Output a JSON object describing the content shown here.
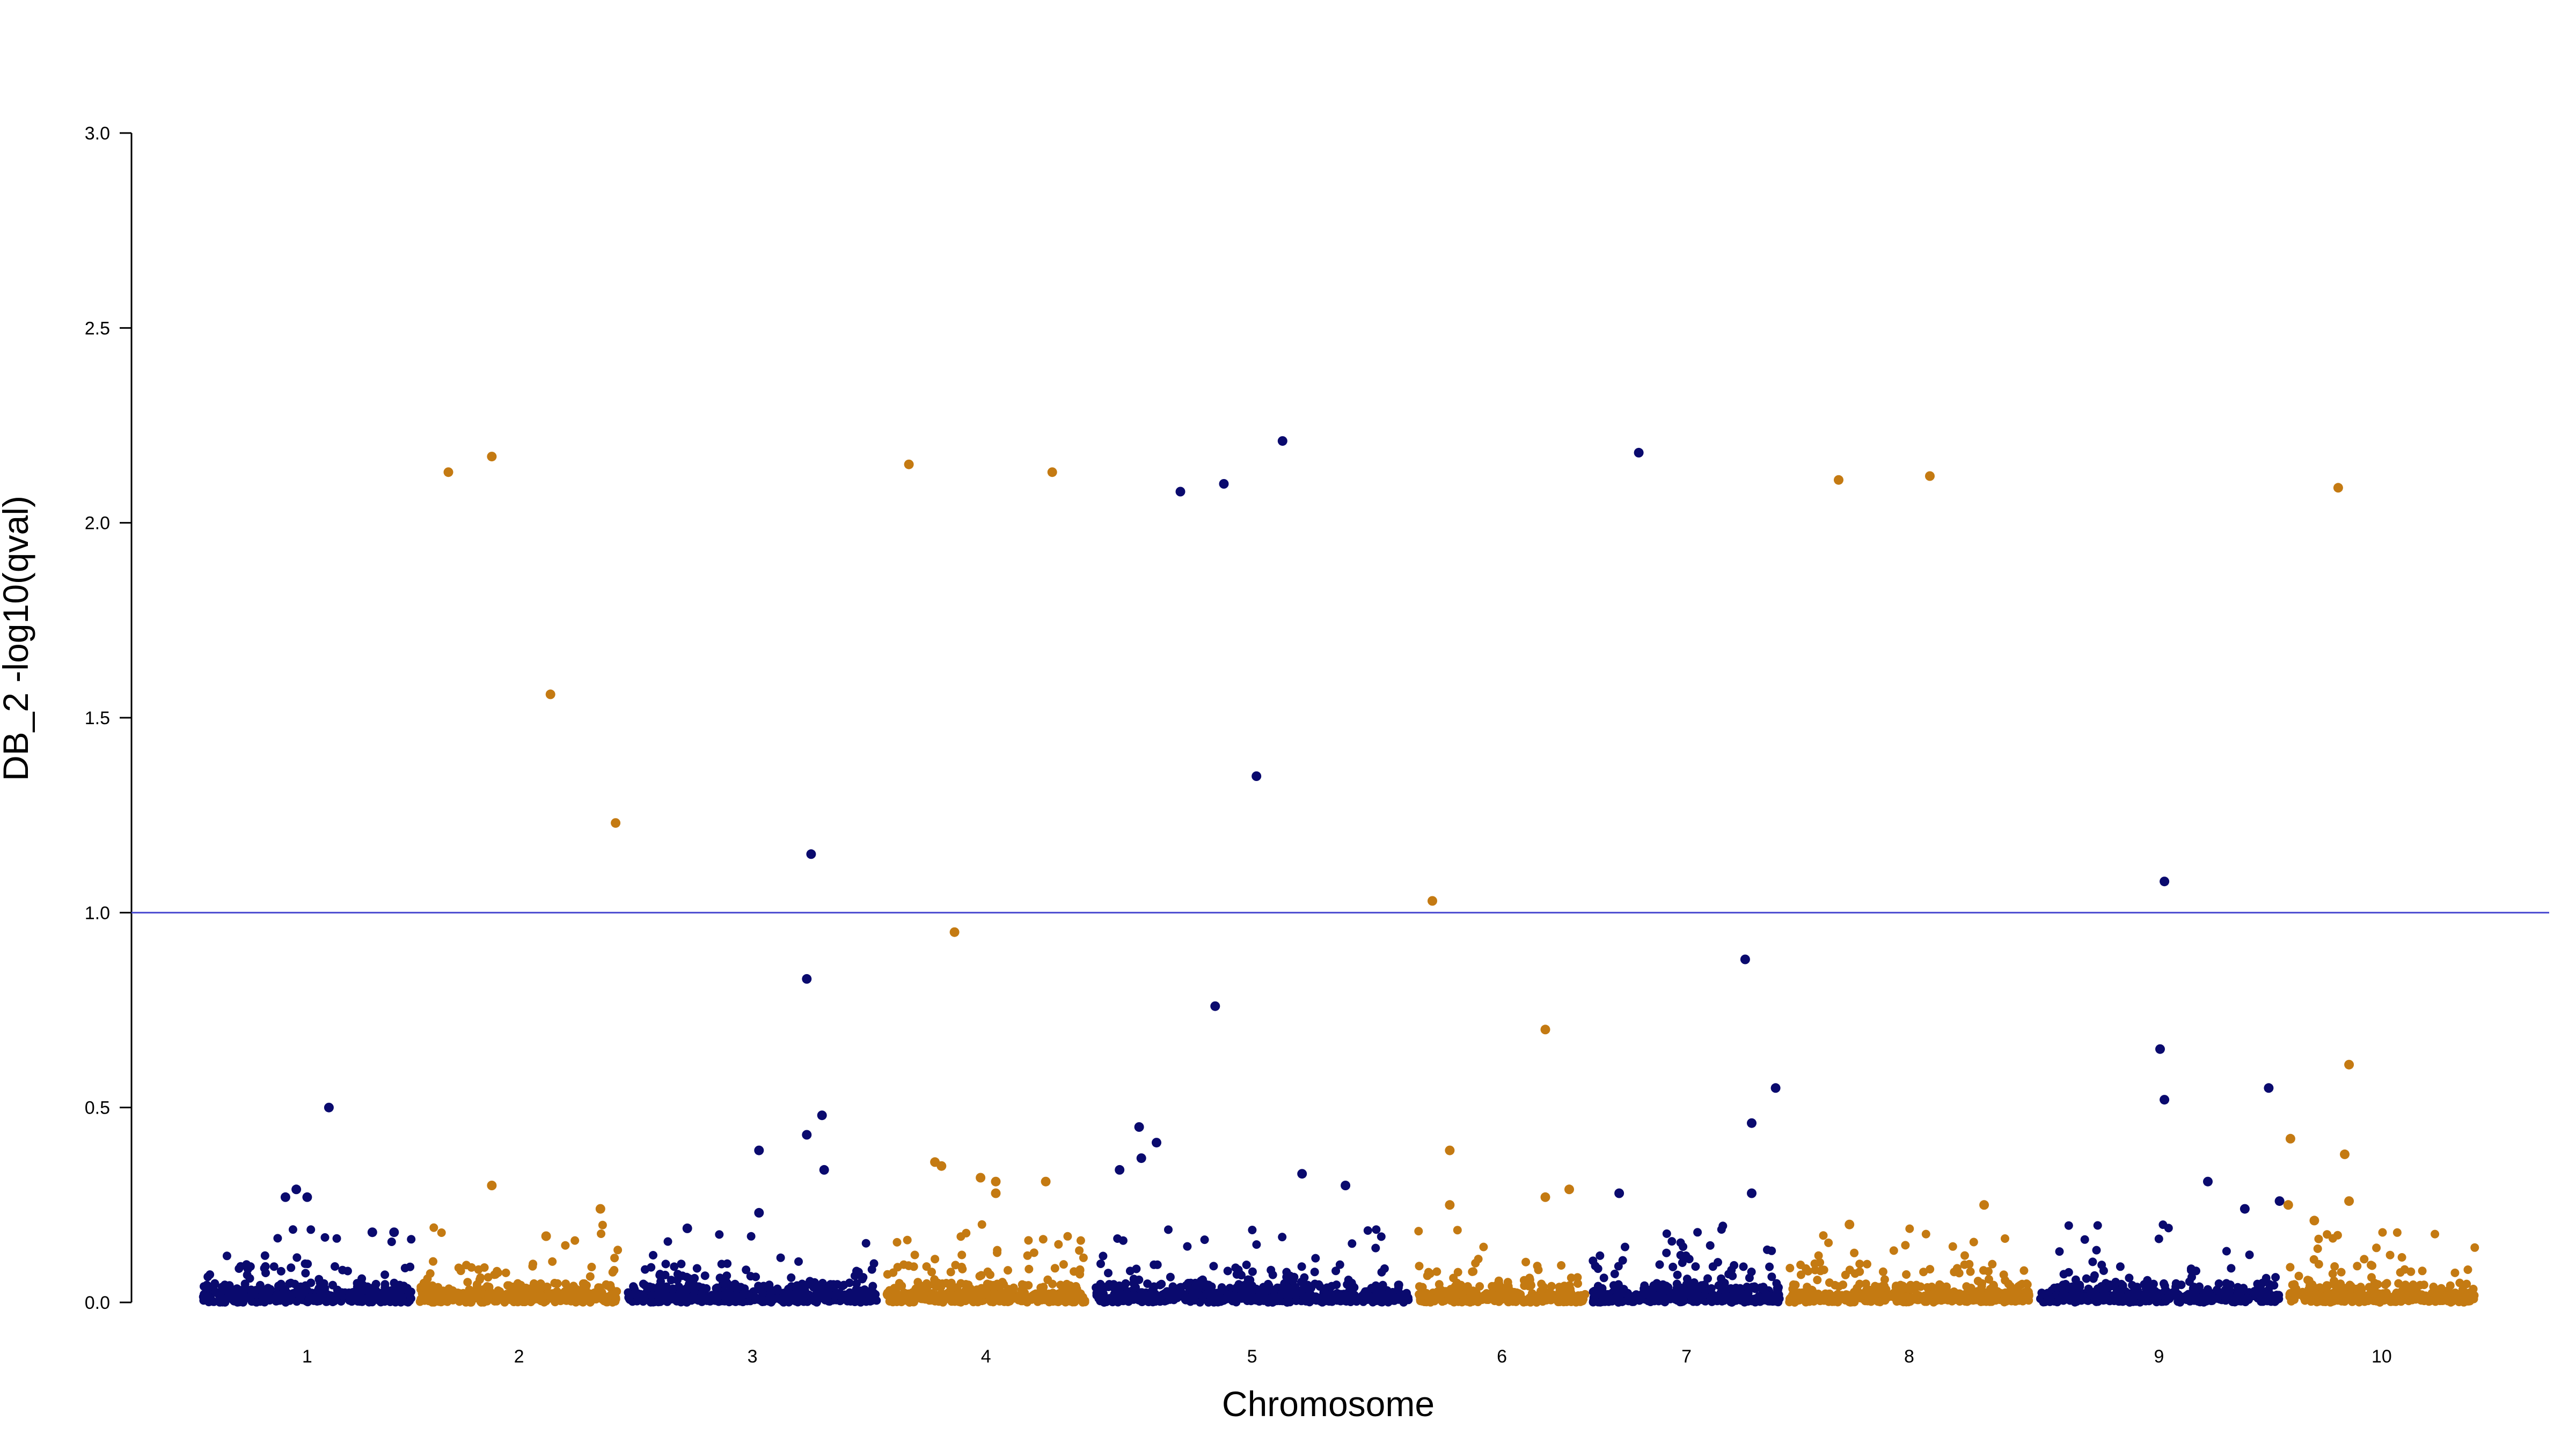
{
  "chart_data": {
    "type": "scatter",
    "subtype": "manhattan",
    "title": "",
    "xlabel": "Chromosome",
    "ylabel": "DB_2 -log10(qval)",
    "ylim": [
      0,
      3
    ],
    "yticks": [
      "0.0",
      "0.5",
      "1.0",
      "1.5",
      "2.0",
      "2.5",
      "3.0"
    ],
    "threshold": 1.0,
    "colors": {
      "odd": "#0a0a6e",
      "even": "#c47a12",
      "threshold": "#4a4ad0"
    },
    "chromosomes": [
      {
        "label": "1",
        "xstart": 0.0,
        "xend": 1.0
      },
      {
        "label": "2",
        "xstart": 1.0,
        "xend": 1.95
      },
      {
        "label": "3",
        "xstart": 1.95,
        "xend": 3.15
      },
      {
        "label": "4",
        "xstart": 3.15,
        "xend": 4.1
      },
      {
        "label": "5",
        "xstart": 4.1,
        "xend": 5.6
      },
      {
        "label": "6",
        "xstart": 5.6,
        "xend": 6.4
      },
      {
        "label": "7",
        "xstart": 6.4,
        "xend": 7.3
      },
      {
        "label": "8",
        "xstart": 7.3,
        "xend": 8.45
      },
      {
        "label": "9",
        "xstart": 8.45,
        "xend": 9.6
      },
      {
        "label": "10",
        "xstart": 9.6,
        "xend": 10.5
      }
    ],
    "points": [
      {
        "chr": 2,
        "pos": 0.15,
        "y": 2.13
      },
      {
        "chr": 2,
        "pos": 0.35,
        "y": 2.17
      },
      {
        "chr": 2,
        "pos": 0.62,
        "y": 1.56
      },
      {
        "chr": 2,
        "pos": 0.92,
        "y": 1.23
      },
      {
        "chr": 2,
        "pos": 0.35,
        "y": 0.3
      },
      {
        "chr": 2,
        "pos": 0.85,
        "y": 0.24
      },
      {
        "chr": 2,
        "pos": 0.6,
        "y": 0.17
      },
      {
        "chr": 1,
        "pos": 0.6,
        "y": 0.5
      },
      {
        "chr": 1,
        "pos": 0.45,
        "y": 0.29
      },
      {
        "chr": 1,
        "pos": 0.4,
        "y": 0.27
      },
      {
        "chr": 1,
        "pos": 0.5,
        "y": 0.27
      },
      {
        "chr": 1,
        "pos": 0.8,
        "y": 0.18
      },
      {
        "chr": 1,
        "pos": 0.9,
        "y": 0.18
      },
      {
        "chr": 3,
        "pos": 0.87,
        "y": 1.15
      },
      {
        "chr": 3,
        "pos": 0.85,
        "y": 0.83
      },
      {
        "chr": 3,
        "pos": 0.92,
        "y": 0.48
      },
      {
        "chr": 3,
        "pos": 0.85,
        "y": 0.43
      },
      {
        "chr": 3,
        "pos": 0.63,
        "y": 0.39
      },
      {
        "chr": 3,
        "pos": 0.93,
        "y": 0.34
      },
      {
        "chr": 3,
        "pos": 0.63,
        "y": 0.23
      },
      {
        "chr": 3,
        "pos": 0.3,
        "y": 0.19
      },
      {
        "chr": 4,
        "pos": 0.12,
        "y": 2.15
      },
      {
        "chr": 4,
        "pos": 0.78,
        "y": 2.13
      },
      {
        "chr": 4,
        "pos": 0.33,
        "y": 0.95
      },
      {
        "chr": 4,
        "pos": 0.24,
        "y": 0.36
      },
      {
        "chr": 4,
        "pos": 0.27,
        "y": 0.35
      },
      {
        "chr": 4,
        "pos": 0.45,
        "y": 0.32
      },
      {
        "chr": 4,
        "pos": 0.52,
        "y": 0.31
      },
      {
        "chr": 4,
        "pos": 0.75,
        "y": 0.31
      },
      {
        "chr": 4,
        "pos": 0.52,
        "y": 0.28
      },
      {
        "chr": 5,
        "pos": 0.42,
        "y": 2.08
      },
      {
        "chr": 5,
        "pos": 0.62,
        "y": 2.1
      },
      {
        "chr": 5,
        "pos": 0.89,
        "y": 2.21
      },
      {
        "chr": 5,
        "pos": 0.77,
        "y": 1.35
      },
      {
        "chr": 5,
        "pos": 0.58,
        "y": 0.76
      },
      {
        "chr": 5,
        "pos": 0.23,
        "y": 0.45
      },
      {
        "chr": 5,
        "pos": 0.31,
        "y": 0.41
      },
      {
        "chr": 5,
        "pos": 0.24,
        "y": 0.37
      },
      {
        "chr": 5,
        "pos": 0.14,
        "y": 0.34
      },
      {
        "chr": 5,
        "pos": 0.98,
        "y": 0.33
      },
      {
        "chr": 5,
        "pos": 1.18,
        "y": 0.3
      },
      {
        "chr": 6,
        "pos": 0.08,
        "y": 1.03
      },
      {
        "chr": 6,
        "pos": 0.6,
        "y": 0.7
      },
      {
        "chr": 6,
        "pos": 0.16,
        "y": 0.39
      },
      {
        "chr": 6,
        "pos": 0.71,
        "y": 0.29
      },
      {
        "chr": 6,
        "pos": 0.6,
        "y": 0.27
      },
      {
        "chr": 6,
        "pos": 0.16,
        "y": 0.25
      },
      {
        "chr": 7,
        "pos": 0.23,
        "y": 2.18
      },
      {
        "chr": 7,
        "pos": 0.72,
        "y": 0.88
      },
      {
        "chr": 7,
        "pos": 0.86,
        "y": 0.55
      },
      {
        "chr": 7,
        "pos": 0.75,
        "y": 0.46
      },
      {
        "chr": 7,
        "pos": 0.75,
        "y": 0.28
      },
      {
        "chr": 7,
        "pos": 0.14,
        "y": 0.28
      },
      {
        "chr": 8,
        "pos": 0.25,
        "y": 2.11
      },
      {
        "chr": 8,
        "pos": 0.67,
        "y": 2.12
      },
      {
        "chr": 8,
        "pos": 0.92,
        "y": 0.25
      },
      {
        "chr": 8,
        "pos": 0.3,
        "y": 0.2
      },
      {
        "chr": 9,
        "pos": 0.6,
        "y": 1.08
      },
      {
        "chr": 9,
        "pos": 0.58,
        "y": 0.65
      },
      {
        "chr": 9,
        "pos": 0.6,
        "y": 0.52
      },
      {
        "chr": 9,
        "pos": 1.08,
        "y": 0.55
      },
      {
        "chr": 9,
        "pos": 0.8,
        "y": 0.31
      },
      {
        "chr": 9,
        "pos": 1.16,
        "y": 0.26
      },
      {
        "chr": 9,
        "pos": 0.97,
        "y": 0.24
      },
      {
        "chr": 10,
        "pos": 0.25,
        "y": 2.09
      },
      {
        "chr": 10,
        "pos": 0.3,
        "y": 0.61
      },
      {
        "chr": 10,
        "pos": 0.03,
        "y": 0.42
      },
      {
        "chr": 10,
        "pos": 0.28,
        "y": 0.38
      },
      {
        "chr": 10,
        "pos": 0.3,
        "y": 0.26
      },
      {
        "chr": 10,
        "pos": 0.02,
        "y": 0.25
      },
      {
        "chr": 10,
        "pos": 0.14,
        "y": 0.21
      }
    ],
    "grid": false,
    "legend": "none"
  }
}
